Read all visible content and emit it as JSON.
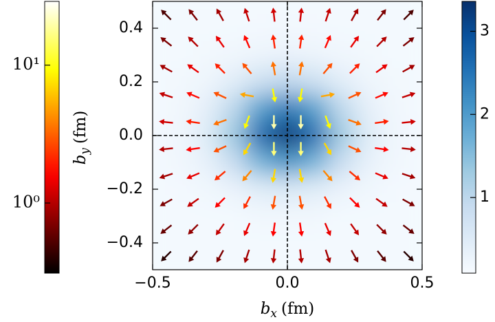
{
  "chart_data": {
    "type": "quiver",
    "xlabel": {
      "symbol": "b",
      "subscript": "x",
      "unit": "(fm)"
    },
    "ylabel": {
      "symbol": "b",
      "subscript": "y",
      "unit": "(fm)"
    },
    "xlim": [
      -0.5,
      0.5
    ],
    "ylim": [
      -0.5,
      0.5
    ],
    "xticks": [
      {
        "value": -0.5,
        "label": "−0.5"
      },
      {
        "value": 0,
        "label": "0.0"
      },
      0.5
    ],
    "yticks": [
      {
        "value": -0.4,
        "label": "−0.4"
      },
      {
        "value": -0.2,
        "label": "−0.2"
      },
      {
        "value": 0,
        "label": "0.0"
      },
      0.2,
      0.4
    ],
    "reference_lines": {
      "x": 0,
      "y": 0
    },
    "density": {
      "colormap": "Blues",
      "x": [
        -0.5,
        -0.4,
        -0.3,
        -0.2,
        -0.1,
        0,
        0.1,
        0.2,
        0.3,
        0.4,
        0.5
      ],
      "y": [
        0.5,
        0.4,
        0.3,
        0.2,
        0.1,
        0,
        -0.1,
        -0.2,
        -0.3,
        -0.4,
        -0.5
      ],
      "values": [
        [
          0.15,
          0.15,
          0.15,
          0.15,
          0.15,
          0.15,
          0.15,
          0.15,
          0.15,
          0.15,
          0.15
        ],
        [
          0.15,
          0.15,
          0.15,
          0.15,
          0.16,
          0.17,
          0.16,
          0.15,
          0.15,
          0.15,
          0.15
        ],
        [
          0.15,
          0.15,
          0.17,
          0.21,
          0.27,
          0.31,
          0.27,
          0.21,
          0.17,
          0.15,
          0.15
        ],
        [
          0.15,
          0.17,
          0.24,
          0.45,
          0.79,
          0.97,
          0.79,
          0.45,
          0.24,
          0.17,
          0.15
        ],
        [
          0.15,
          0.19,
          0.39,
          0.99,
          1.92,
          2.42,
          1.92,
          0.99,
          0.39,
          0.19,
          0.15
        ],
        [
          0.16,
          0.21,
          0.48,
          1.32,
          2.61,
          3.3,
          2.61,
          1.32,
          0.48,
          0.21,
          0.16
        ],
        [
          0.15,
          0.19,
          0.35,
          0.86,
          1.65,
          2.07,
          1.65,
          0.86,
          0.35,
          0.19,
          0.15
        ],
        [
          0.15,
          0.16,
          0.2,
          0.31,
          0.48,
          0.58,
          0.48,
          0.31,
          0.2,
          0.16,
          0.15
        ],
        [
          0.15,
          0.15,
          0.15,
          0.15,
          0.18,
          0.19,
          0.18,
          0.15,
          0.15,
          0.15,
          0.15
        ],
        [
          0.15,
          0.15,
          0.15,
          0.15,
          0.15,
          0.15,
          0.15,
          0.15,
          0.15,
          0.15,
          0.15
        ],
        [
          0.15,
          0.15,
          0.15,
          0.15,
          0.15,
          0.15,
          0.15,
          0.15,
          0.15,
          0.15,
          0.15
        ]
      ],
      "colorbar": {
        "lim": [
          0.09,
          3.36
        ],
        "ticks": [
          1,
          2,
          3
        ]
      }
    },
    "arrows": {
      "colormap": "hot",
      "x": [
        -0.45,
        -0.35,
        -0.25,
        -0.15,
        -0.05,
        0.05,
        0.15,
        0.25,
        0.35,
        0.45
      ],
      "y": [
        0.45,
        0.35,
        0.25,
        0.15,
        0.05,
        -0.05,
        -0.15,
        -0.25,
        -0.35,
        -0.45
      ],
      "angles": [
        [
          135,
          127.9,
          119.1,
          108.4,
          96.3,
          83.7,
          71.6,
          60.9,
          52.1,
          45
        ],
        [
          142.1,
          135,
          125.5,
          113.2,
          98.1,
          81.9,
          66.8,
          54.5,
          45,
          37.9
        ],
        [
          150.9,
          144.5,
          135,
          130,
          100,
          80,
          50,
          45,
          35.5,
          29.1
        ],
        [
          161.6,
          156.8,
          155,
          170,
          -80,
          -100,
          10,
          25,
          23.2,
          18.4
        ],
        [
          173.7,
          171.9,
          -160,
          -110,
          -90,
          -90,
          -70,
          -20,
          8.1,
          6.3
        ],
        [
          -173.7,
          -171.9,
          -155,
          -120,
          -90,
          -90,
          -60,
          -25,
          -8.1,
          -6.3
        ],
        [
          -161.6,
          -156.8,
          -140,
          -130,
          -100,
          -80,
          -50,
          -40,
          -23.2,
          -18.4
        ],
        [
          -150.9,
          -144.5,
          -135,
          -118,
          -100,
          -80,
          -62,
          -45,
          -35.5,
          -29.1
        ],
        [
          -142.1,
          -135,
          -125.5,
          -113.2,
          -98.1,
          -81.9,
          -66.8,
          -54.5,
          -45,
          -37.9
        ],
        [
          -135,
          -127.9,
          -119.1,
          -108.4,
          -96.3,
          -83.7,
          -71.6,
          -60.9,
          -52.1,
          -45
        ]
      ],
      "magnitudes": [
        [
          0.5,
          0.7,
          0.9,
          1.1,
          1.2,
          1.2,
          1.1,
          0.9,
          0.7,
          0.5
        ],
        [
          0.7,
          1,
          1.4,
          1.7,
          2,
          2,
          1.7,
          1.4,
          1,
          0.7
        ],
        [
          0.9,
          1.4,
          2,
          2.8,
          3.5,
          3.5,
          2.8,
          2,
          1.4,
          0.9
        ],
        [
          1.1,
          1.7,
          2.8,
          5,
          9,
          9,
          5,
          2.8,
          1.7,
          1.1
        ],
        [
          1.2,
          2,
          3.5,
          9,
          20,
          20,
          9,
          3.5,
          2,
          1.2
        ],
        [
          1,
          1.6,
          2.8,
          7,
          16,
          16,
          7,
          2.8,
          1.6,
          1
        ],
        [
          0.9,
          1.4,
          2.2,
          4,
          7,
          7,
          4,
          2.2,
          1.4,
          0.9
        ],
        [
          0.7,
          1.1,
          1.6,
          2.2,
          2.8,
          2.8,
          2.2,
          1.6,
          1.1,
          0.7
        ],
        [
          0.6,
          0.8,
          1.1,
          1.4,
          1.6,
          1.6,
          1.4,
          1.1,
          0.8,
          0.6
        ],
        [
          0.4,
          0.55,
          0.7,
          0.9,
          1,
          1,
          0.9,
          0.7,
          0.55,
          0.4
        ]
      ],
      "colorbar": {
        "scale": "log",
        "lim": [
          0.31,
          29
        ],
        "ticks": [
          {
            "value": 10,
            "label": "10¹"
          },
          {
            "value": 1,
            "label": "10⁰"
          }
        ]
      }
    }
  }
}
